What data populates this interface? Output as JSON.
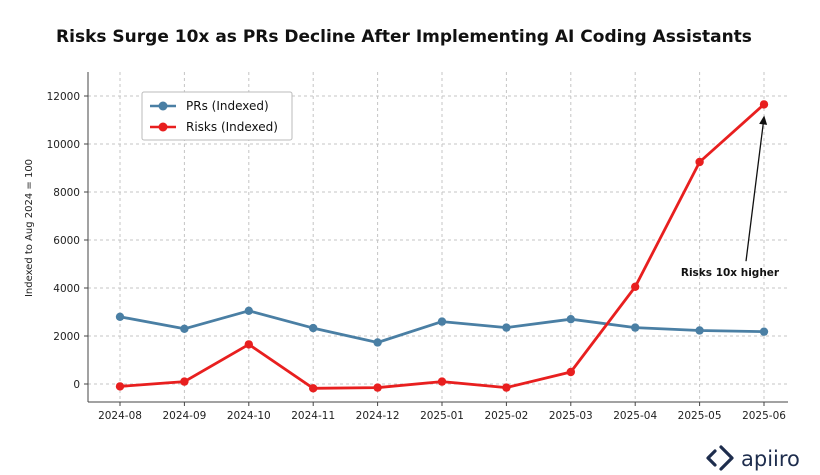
{
  "chart_data": {
    "type": "line",
    "title": "Risks Surge 10x as PRs Decline After Implementing AI Coding Assistants",
    "xlabel": "",
    "ylabel": "Indexed to Aug 2024 = 100",
    "categories": [
      "2024-08",
      "2024-09",
      "2024-10",
      "2024-11",
      "2024-12",
      "2025-01",
      "2025-02",
      "2025-03",
      "2025-04",
      "2025-05",
      "2025-06"
    ],
    "ylim": [
      -750,
      13000
    ],
    "yticks": [
      0,
      2000,
      4000,
      6000,
      8000,
      10000,
      12000
    ],
    "grid": true,
    "legend_position": "top-left",
    "series": [
      {
        "name": "PRs (Indexed)",
        "color": "#4a7fa4",
        "values": [
          2800,
          2300,
          3050,
          2330,
          1730,
          2600,
          2350,
          2700,
          2350,
          2230,
          2180
        ]
      },
      {
        "name": "Risks (Indexed)",
        "color": "#e81f1f",
        "values": [
          -100,
          100,
          1650,
          -180,
          -150,
          100,
          -150,
          500,
          4050,
          9250,
          11650
        ]
      }
    ],
    "annotation": {
      "text": "Risks 10x higher",
      "target_category": "2025-06",
      "target_value": 11650,
      "text_value": 4700
    }
  },
  "branding": {
    "logo_text": "apiiro",
    "logo_icon": "diamond-chevron-icon",
    "logo_color": "#1e2d4d"
  }
}
